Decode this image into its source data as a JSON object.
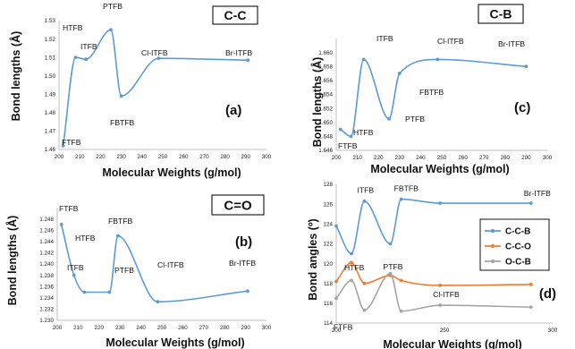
{
  "chart_data": [
    {
      "type": "line",
      "panel_label": "(a)",
      "title": "C-C",
      "xlabel": "Molecular Weights (g/mol)",
      "ylabel": "Bond lengths (Å)",
      "xlim": [
        200,
        300
      ],
      "ylim": [
        1.46,
        1.53
      ],
      "xticks": [
        "200",
        "210",
        "220",
        "230",
        "240",
        "250",
        "260",
        "270",
        "280",
        "290",
        "300"
      ],
      "yticks": [
        "1.46",
        "1.47",
        "1.48",
        "1.49",
        "1.50",
        "1.51",
        "1.52",
        "1.53"
      ],
      "series": [
        {
          "color": "#5b9bd5",
          "points": [
            {
              "label": "FTFB",
              "x": 202,
              "y": 1.462
            },
            {
              "label": "HTFB",
              "x": 208,
              "y": 1.51
            },
            {
              "label": "ITFB",
              "x": 213,
              "y": 1.509
            },
            {
              "label": "PTFB",
              "x": 225,
              "y": 1.525
            },
            {
              "label": "FBTFB",
              "x": 230,
              "y": 1.489
            },
            {
              "label": "Cl-ITFB",
              "x": 248,
              "y": 1.5095
            },
            {
              "label": "Br-ITFB",
              "x": 291,
              "y": 1.5085
            }
          ]
        }
      ]
    },
    {
      "type": "line",
      "panel_label": "(b)",
      "title": "C=O",
      "xlabel": "Molecular Weights (g/mol)",
      "ylabel": "Bond lengths (Å)",
      "xlim": [
        200,
        300
      ],
      "ylim": [
        1.23,
        1.25
      ],
      "xticks": [
        "200",
        "210",
        "220",
        "230",
        "240",
        "250",
        "260",
        "270",
        "280",
        "290",
        "300"
      ],
      "yticks": [
        "1.230",
        "1.232",
        "1.234",
        "1.236",
        "1.238",
        "1.240",
        "1.242",
        "1.244",
        "1.246",
        "1.248"
      ],
      "series": [
        {
          "color": "#5b9bd5",
          "points": [
            {
              "label": "FTFB",
              "x": 202,
              "y": 1.247
            },
            {
              "label": "HTFB",
              "x": 208,
              "y": 1.238
            },
            {
              "label": "ITFB",
              "x": 213,
              "y": 1.235
            },
            {
              "label": "PTFB",
              "x": 225,
              "y": 1.235
            },
            {
              "label": "FBTFB",
              "x": 229,
              "y": 1.245
            },
            {
              "label": "Cl-ITFB",
              "x": 248,
              "y": 1.2333
            },
            {
              "label": "Br-ITFB",
              "x": 291,
              "y": 1.2352
            }
          ]
        }
      ]
    },
    {
      "type": "line",
      "panel_label": "(c)",
      "title": "C-B",
      "xlabel": "Molecular Weights (g/mol)",
      "ylabel": "Bond lengths (Å)",
      "xlim": [
        200,
        300
      ],
      "ylim": [
        1.646,
        1.662
      ],
      "xticks": [
        "200",
        "210",
        "220",
        "230",
        "240",
        "250",
        "260",
        "270",
        "280",
        "290",
        "300"
      ],
      "yticks": [
        "1.646",
        "1.648",
        "1.650",
        "1.652",
        "1.654",
        "1.656",
        "1.658",
        "1.660"
      ],
      "series": [
        {
          "color": "#5b9bd5",
          "points": [
            {
              "label": "FTFB",
              "x": 202,
              "y": 1.649
            },
            {
              "label": "HTFB",
              "x": 207,
              "y": 1.648
            },
            {
              "label": "ITFB",
              "x": 213,
              "y": 1.659
            },
            {
              "label": "PTFB",
              "x": 225,
              "y": 1.6505
            },
            {
              "label": "FBTFB",
              "x": 230,
              "y": 1.657
            },
            {
              "label": "Cl-ITFB",
              "x": 248,
              "y": 1.659
            },
            {
              "label": "Br-ITFB",
              "x": 290,
              "y": 1.658
            }
          ]
        }
      ]
    },
    {
      "type": "line",
      "panel_label": "(d)",
      "xlabel": "Molecular Weights (g/mol)",
      "ylabel": "Bond angles (º)",
      "xlim": [
        200,
        300
      ],
      "ylim": [
        114,
        128
      ],
      "xticks": [
        "200",
        "250",
        "300"
      ],
      "yticks": [
        "114",
        "116",
        "118",
        "120",
        "122",
        "124",
        "126",
        "128"
      ],
      "point_labels": [
        {
          "text": "FTFB",
          "x": 202,
          "y": 113.6
        },
        {
          "text": "HTFB",
          "x": 207,
          "y": 119.6
        },
        {
          "text": "ITFB",
          "x": 213,
          "y": 127.4
        },
        {
          "text": "FBTFB",
          "x": 230,
          "y": 127.6
        },
        {
          "text": "PTFB",
          "x": 225,
          "y": 119.7
        },
        {
          "text": "Cl-ITFB",
          "x": 248,
          "y": 116.9
        },
        {
          "text": "Br-ITFB",
          "x": 290,
          "y": 127.1
        }
      ],
      "series": [
        {
          "name": "C-C-B",
          "color": "#5b9bd5",
          "x": [
            200,
            207,
            213,
            225,
            230,
            248,
            290
          ],
          "values": [
            123.8,
            121.0,
            126.3,
            122.0,
            126.5,
            126.1,
            126.1
          ]
        },
        {
          "name": "C-C-O",
          "color": "#ed7d31",
          "x": [
            200,
            207,
            213,
            225,
            230,
            248,
            290
          ],
          "values": [
            118.2,
            120.1,
            118.0,
            118.8,
            118.3,
            117.8,
            117.9
          ]
        },
        {
          "name": "O-C-B",
          "color": "#a5a5a5",
          "x": [
            200,
            207,
            213,
            225,
            230,
            248,
            290
          ],
          "values": [
            116.5,
            118.3,
            115.3,
            119.0,
            115.2,
            115.8,
            115.6
          ]
        }
      ]
    }
  ]
}
